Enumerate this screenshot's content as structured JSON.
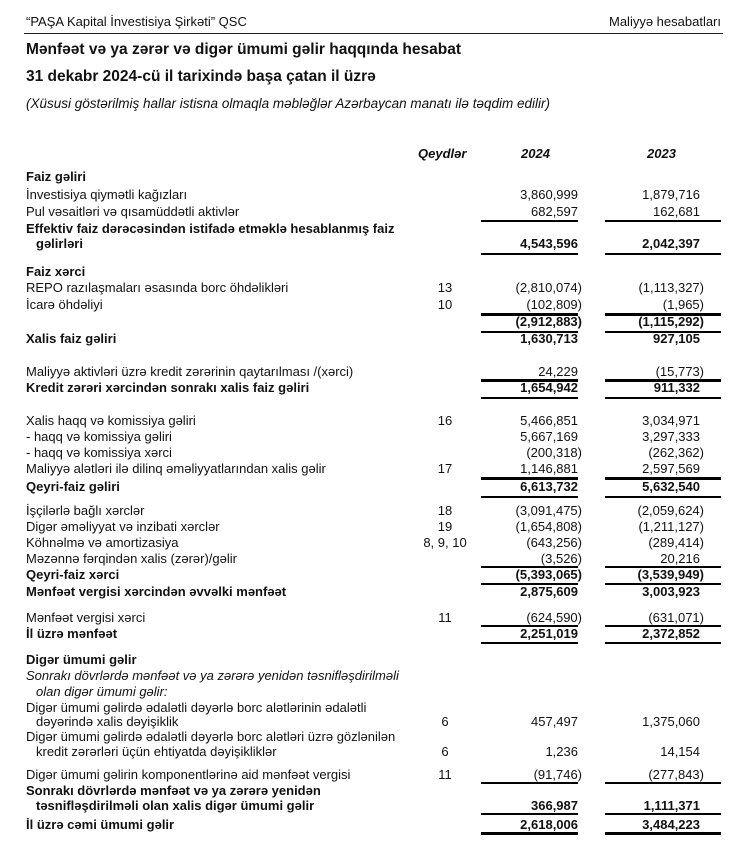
{
  "header": {
    "company": "“PAŞA Kapital İnvestisiya Şirkəti” QSC",
    "section": "Maliyyə hesabatları"
  },
  "title": "Mənfəət və ya zərər və digər ümumi gəlir haqqında hesabat",
  "subtitle": "31 dekabr 2024-cü il tarixində başa çatan il üzrə",
  "note": "(Xüsusi göstərilmiş hallar istisna olmaqla məbləğlər Azərbaycan manatı ilə təqdim edilir)",
  "columns": {
    "notes": "Qeydlər",
    "y2024": "2024",
    "y2023": "2023"
  },
  "rows": [
    {
      "label": "Faiz gəliri",
      "style": "b"
    },
    {
      "label": "İnvestisiya qiymətli kağızları",
      "v2024": "3,860,999",
      "v2023": "1,879,716"
    },
    {
      "label": "Pul vəsaitləri və qısamüddətli aktivlər",
      "v2024": "682,597",
      "v2023": "162,681"
    },
    {
      "label": "Effektiv faiz dərəcəsindən istifadə etməklə hesablanmış faiz",
      "style": "b"
    },
    {
      "label": "gəlirləri",
      "style": "b",
      "indent": true,
      "v2024": "4,543,596",
      "v2023": "2,042,397"
    },
    {
      "label": "Faiz xərci",
      "style": "b"
    },
    {
      "label": "REPO razılaşmaları əsasında borc öhdəlikləri",
      "note": "13",
      "v2024": "(2,810,074)",
      "v2023": "(1,113,327)"
    },
    {
      "label": "İcarə öhdəliyi",
      "note": "10",
      "v2024": "(102,809)",
      "v2023": "(1,965)"
    },
    {
      "label": "",
      "style": "b",
      "v2024": "(2,912,883)",
      "v2023": "(1,115,292)"
    },
    {
      "label": "Xalis faiz gəliri",
      "style": "b",
      "v2024": "1,630,713",
      "v2023": "927,105"
    },
    {
      "label": "Maliyyə aktivləri üzrə kredit zərərinin qaytarılması /(xərci)",
      "v2024": "24,229",
      "v2023": "(15,773)"
    },
    {
      "label": "Kredit zərəri xərcindən sonrakı xalis faiz gəliri",
      "style": "b",
      "v2024": "1,654,942",
      "v2023": "911,332"
    },
    {
      "label": "Xalis haqq və komissiya gəliri",
      "note": "16",
      "v2024": "5,466,851",
      "v2023": "3,034,971"
    },
    {
      "label": "- haqq və komissiya gəliri",
      "v2024": "5,667,169",
      "v2023": "3,297,333"
    },
    {
      "label": "- haqq və komissiya xərci",
      "v2024": "(200,318)",
      "v2023": "(262,362)"
    },
    {
      "label": "Maliyyə alətləri ilə dilinq əməliyyatlarından xalis gəlir",
      "note": "17",
      "v2024": "1,146,881",
      "v2023": "2,597,569"
    },
    {
      "label": "Qeyri-faiz gəliri",
      "style": "b",
      "v2024": "6,613,732",
      "v2023": "5,632,540"
    },
    {
      "label": "İşçilərlə bağlı xərclər",
      "note": "18",
      "v2024": "(3,091,475)",
      "v2023": "(2,059,624)"
    },
    {
      "label": "Digər əməliyyat və inzibati xərclər",
      "note": "19",
      "v2024": "(1,654,808)",
      "v2023": "(1,211,127)"
    },
    {
      "label": "Köhnəlmə və amortizasiya",
      "note": "8, 9, 10",
      "v2024": "(643,256)",
      "v2023": "(289,414)"
    },
    {
      "label": "Məzənnə fərqindən xalis (zərər)/gəlir",
      "v2024": "(3,526)",
      "v2023": "20,216"
    },
    {
      "label": "Qeyri-faiz xərci",
      "style": "b",
      "v2024": "(5,393,065)",
      "v2023": "(3,539,949)"
    },
    {
      "label": "Mənfəət vergisi xərcindən əvvəlki mənfəət",
      "style": "b",
      "v2024": "2,875,609",
      "v2023": "3,003,923"
    },
    {
      "label": "Mənfəət vergisi xərci",
      "note": "11",
      "v2024": "(624,590)",
      "v2023": "(631,071)"
    },
    {
      "label": "İl üzrə mənfəət",
      "style": "b",
      "v2024": "2,251,019",
      "v2023": "2,372,852"
    },
    {
      "label": "Digər ümumi gəlir",
      "style": "b"
    },
    {
      "label": "Sonrakı dövrlərdə mənfəət və ya zərərə yenidən təsnifləşdirilməli",
      "style": "i"
    },
    {
      "label": "olan digər ümumi gəlir:",
      "style": "i",
      "indent": true
    },
    {
      "label": "Digər ümumi gəlirdə ədalətli dəyərlə borc alətlərinin ədalətli"
    },
    {
      "label": "dəyərində xalis dəyişiklik",
      "indent": true,
      "note": "6",
      "v2024": "457,497",
      "v2023": "1,375,060"
    },
    {
      "label": "Digər ümumi gəlirdə ədalətli dəyərlə borc alətləri üzrə gözlənilən"
    },
    {
      "label": "kredit zərərləri üçün ehtiyatda dəyişikliklər",
      "indent": true,
      "note": "6",
      "v2024": "1,236",
      "v2023": "14,154"
    },
    {
      "label": "Digər ümumi gəlirin komponentlərinə aid mənfəət vergisi",
      "note": "11",
      "v2024": "(91,746)",
      "v2023": "(277,843)"
    },
    {
      "label": "Sonrakı dövrlərdə mənfəət və ya zərərə yenidən",
      "style": "b"
    },
    {
      "label": "təsnifləşdirilməli olan xalis digər ümumi gəlir",
      "style": "b",
      "indent": true,
      "v2024": "366,987",
      "v2023": "1,111,371"
    },
    {
      "label": "İl üzrə cəmi ümumi gəlir",
      "style": "b",
      "v2024": "2,618,006",
      "v2023": "3,484,223"
    }
  ]
}
